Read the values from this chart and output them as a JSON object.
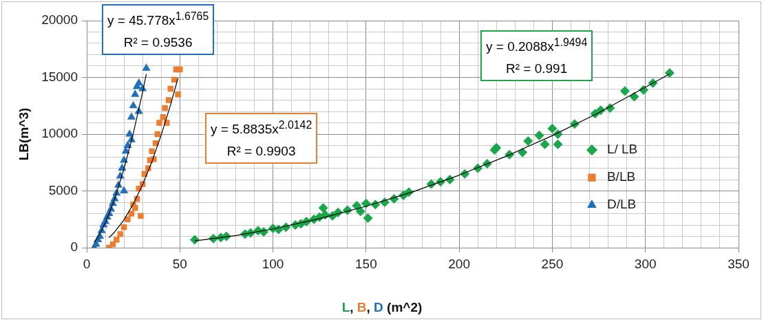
{
  "chart_data": {
    "type": "scatter",
    "xlabel": "L, B, D (m^2)",
    "ylabel": "LB(m^3)",
    "xlim": [
      0,
      350
    ],
    "xticks": [
      0,
      {
        "value": 10,
        "label": null
      },
      {
        "value": 20,
        "label": null
      },
      {
        "value": 30,
        "label": null
      },
      {
        "value": 40,
        "label": null
      },
      50,
      {
        "value": 60,
        "label": null
      },
      {
        "value": 70,
        "label": null
      },
      {
        "value": 80,
        "label": null
      },
      {
        "value": 90,
        "label": null
      },
      100,
      {
        "value": 110,
        "label": null
      },
      {
        "value": 120,
        "label": null
      },
      {
        "value": 130,
        "label": null
      },
      {
        "value": 140,
        "label": null
      },
      150,
      {
        "value": 160,
        "label": null
      },
      {
        "value": 170,
        "label": null
      },
      {
        "value": 180,
        "label": null
      },
      {
        "value": 190,
        "label": null
      },
      200,
      {
        "value": 210,
        "label": null
      },
      {
        "value": 220,
        "label": null
      },
      {
        "value": 230,
        "label": null
      },
      {
        "value": 240,
        "label": null
      },
      250,
      {
        "value": 260,
        "label": null
      },
      {
        "value": 270,
        "label": null
      },
      {
        "value": 280,
        "label": null
      },
      {
        "value": 290,
        "label": null
      },
      300,
      {
        "value": 310,
        "label": null
      },
      {
        "value": 320,
        "label": null
      },
      {
        "value": 330,
        "label": null
      },
      {
        "value": 340,
        "label": null
      },
      350
    ],
    "ylim": [
      0,
      20000
    ],
    "yticks": [
      0,
      {
        "value": 1000,
        "label": null
      },
      {
        "value": 2000,
        "label": null
      },
      {
        "value": 3000,
        "label": null
      },
      {
        "value": 4000,
        "label": null
      },
      5000,
      {
        "value": 6000,
        "label": null
      },
      {
        "value": 7000,
        "label": null
      },
      {
        "value": 8000,
        "label": null
      },
      {
        "value": 9000,
        "label": null
      },
      10000,
      {
        "value": 11000,
        "label": null
      },
      {
        "value": 12000,
        "label": null
      },
      {
        "value": 13000,
        "label": null
      },
      {
        "value": 14000,
        "label": null
      },
      15000,
      {
        "value": 16000,
        "label": null
      },
      {
        "value": 17000,
        "label": null
      },
      {
        "value": 18000,
        "label": null
      },
      {
        "value": 19000,
        "label": null
      },
      20000
    ],
    "grid": true,
    "legend": "right",
    "annotations": [
      "y = 45.778x$^{1.6765}$",
      "R² = 0.9536",
      "y = 5.8835x$^{2.0142}$",
      "R² = 0.9903",
      "y = 0.2088x$^{1.9494}$",
      "R² = 0.991"
    ],
    "series": [
      {
        "name": "L/ LB",
        "color": "#1aa64a",
        "marker": "diamond",
        "x": [
          58,
          68,
          72,
          75,
          85,
          88,
          92,
          95,
          100,
          103,
          107,
          112,
          115,
          118,
          122,
          125,
          127,
          128,
          132,
          135,
          140,
          145,
          147,
          150,
          151,
          155,
          160,
          165,
          170,
          173,
          185,
          190,
          195,
          203,
          210,
          215,
          219,
          220,
          227,
          234,
          237,
          243,
          246,
          250,
          253,
          253,
          262,
          273,
          276,
          281,
          289,
          294,
          299,
          304,
          313
        ],
        "values": [
          700,
          800,
          900,
          1000,
          1200,
          1300,
          1500,
          1400,
          1700,
          1600,
          1800,
          2000,
          2100,
          2300,
          2500,
          2700,
          3500,
          2900,
          2800,
          3100,
          3300,
          3700,
          3200,
          3900,
          2600,
          3800,
          4000,
          4300,
          4600,
          4900,
          5600,
          5800,
          6000,
          6500,
          7000,
          7400,
          8600,
          8800,
          8200,
          8400,
          9400,
          9900,
          9100,
          10500,
          10000,
          9100,
          10900,
          11800,
          12100,
          12300,
          13800,
          13300,
          13900,
          14500,
          15400
        ]
      },
      {
        "name": "B/LB",
        "color": "#ed7d31",
        "marker": "square",
        "x": [
          12,
          14,
          16,
          18,
          20,
          22,
          24,
          25,
          26,
          27,
          28,
          29,
          30,
          31,
          33,
          34,
          35,
          36,
          37,
          38,
          39,
          41,
          42,
          43,
          44,
          45,
          47,
          48,
          49,
          50
        ],
        "values": [
          0,
          300,
          700,
          1200,
          1800,
          2500,
          3000,
          3800,
          3500,
          4300,
          5200,
          2800,
          5600,
          6500,
          7000,
          7700,
          8500,
          7800,
          9200,
          10000,
          11000,
          11500,
          12300,
          11000,
          13000,
          14000,
          14800,
          15700,
          13500,
          15700
        ]
      },
      {
        "name": "D/LB",
        "color": "#1f6fba",
        "marker": "triangle",
        "x": [
          4,
          5,
          6,
          7,
          8,
          9,
          10,
          11,
          12,
          13,
          14,
          15,
          16,
          17,
          18,
          19,
          20,
          20,
          21,
          22,
          23,
          24,
          24,
          25,
          26,
          27,
          28,
          28,
          30,
          32
        ],
        "values": [
          0,
          300,
          700,
          1000,
          1500,
          2000,
          2300,
          2700,
          3000,
          3400,
          3900,
          4300,
          4800,
          5500,
          6300,
          7000,
          7700,
          5000,
          8500,
          9000,
          10000,
          11500,
          9500,
          12500,
          13500,
          14200,
          14500,
          12000,
          14000,
          15800
        ]
      },
      {
        "type": "line",
        "color": "#000000",
        "marker": "none",
        "x": [
          58,
          80,
          100,
          125,
          150,
          175,
          200,
          225,
          250,
          275,
          313
        ],
        "values": [
          600,
          1070,
          1650,
          2550,
          3650,
          4920,
          6390,
          8040,
          9870,
          11890,
          15300
        ]
      },
      {
        "type": "line",
        "color": "#000000",
        "marker": "none",
        "x": [
          12,
          15,
          20,
          25,
          30,
          35,
          40,
          45,
          49
        ],
        "values": [
          880,
          1380,
          2450,
          3850,
          5560,
          7580,
          9930,
          12570,
          14940
        ]
      },
      {
        "type": "line",
        "color": "#000000",
        "marker": "none",
        "x": [
          4,
          6,
          10,
          15,
          20,
          25,
          30,
          32
        ],
        "values": [
          470,
          920,
          2180,
          4290,
          6940,
          10070,
          13700,
          15300
        ]
      }
    ]
  }
}
